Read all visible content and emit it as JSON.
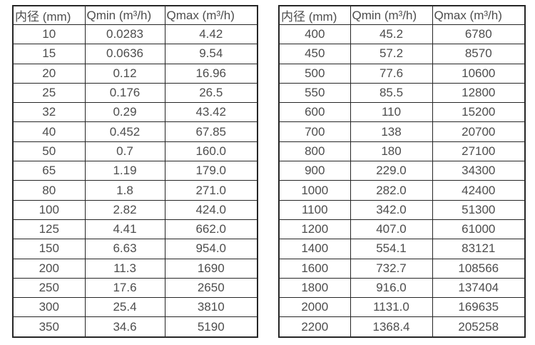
{
  "colors": {
    "background": "#ffffff",
    "border": "#262626",
    "text": "#4d4d4d"
  },
  "tables": [
    {
      "name": "flow-table-small-diameters",
      "headers": [
        "内径 (mm)",
        "Qmin (m³/h)",
        "Qmax (m³/h)"
      ],
      "rows": [
        [
          "10",
          "0.0283",
          "4.42"
        ],
        [
          "15",
          "0.0636",
          "9.54"
        ],
        [
          "20",
          "0.12",
          "16.96"
        ],
        [
          "25",
          "0.176",
          "26.5"
        ],
        [
          "32",
          "0.29",
          "43.42"
        ],
        [
          "40",
          "0.452",
          "67.85"
        ],
        [
          "50",
          "0.7",
          "160.0"
        ],
        [
          "65",
          "1.19",
          "179.0"
        ],
        [
          "80",
          "1.8",
          "271.0"
        ],
        [
          "100",
          "2.82",
          "424.0"
        ],
        [
          "125",
          "4.41",
          "662.0"
        ],
        [
          "150",
          "6.63",
          "954.0"
        ],
        [
          "200",
          "11.3",
          "1690"
        ],
        [
          "250",
          "17.6",
          "2650"
        ],
        [
          "300",
          "25.4",
          "3810"
        ],
        [
          "350",
          "34.6",
          "5190"
        ]
      ]
    },
    {
      "name": "flow-table-large-diameters",
      "headers": [
        "内径 (mm)",
        "Qmin (m³/h)",
        "Qmax (m³/h)"
      ],
      "rows": [
        [
          "400",
          "45.2",
          "6780"
        ],
        [
          "450",
          "57.2",
          "8570"
        ],
        [
          "500",
          "77.6",
          "10600"
        ],
        [
          "550",
          "85.5",
          "12800"
        ],
        [
          "600",
          "110",
          "15200"
        ],
        [
          "700",
          "138",
          "20700"
        ],
        [
          "800",
          "180",
          "27100"
        ],
        [
          "900",
          "229.0",
          "34300"
        ],
        [
          "1000",
          "282.0",
          "42400"
        ],
        [
          "1100",
          "342.0",
          "51300"
        ],
        [
          "1200",
          "407.0",
          "61000"
        ],
        [
          "1400",
          "554.1",
          "83121"
        ],
        [
          "1600",
          "732.7",
          "108566"
        ],
        [
          "1800",
          "916.0",
          "137404"
        ],
        [
          "2000",
          "1131.0",
          "169635"
        ],
        [
          "2200",
          "1368.4",
          "205258"
        ]
      ]
    }
  ]
}
